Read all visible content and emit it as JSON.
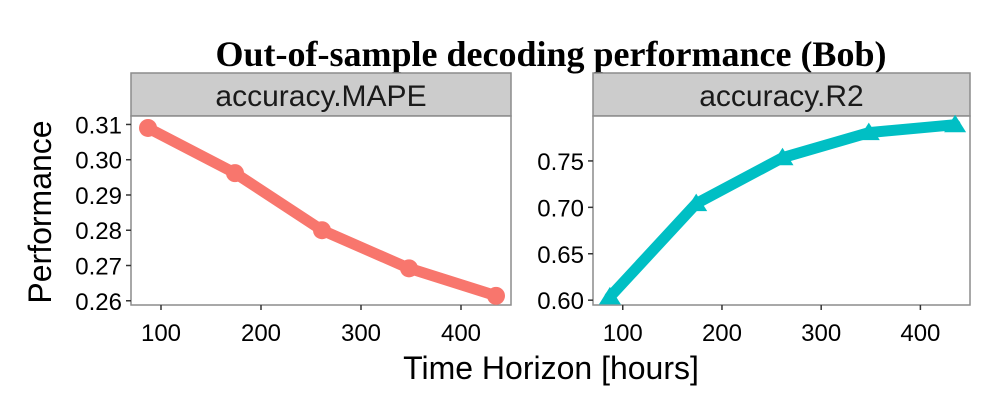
{
  "figure": {
    "title": "Out-of-sample decoding performance (Bob)",
    "xlabel": "Time Horizon [hours]",
    "ylabel": "Performance"
  },
  "chart_data": [
    {
      "type": "line",
      "panel": "accuracy.MAPE",
      "marker": "circle",
      "color": "#F8766D",
      "x": [
        87,
        174,
        261,
        348,
        435
      ],
      "values": [
        0.309,
        0.2962,
        0.28,
        0.2692,
        0.2614
      ],
      "xlim": [
        70,
        450
      ],
      "ylim": [
        0.2588,
        0.3124
      ],
      "xticks": [
        100,
        200,
        300,
        400
      ],
      "xtick_labels": [
        "100",
        "200",
        "300",
        "400"
      ],
      "yticks": [
        0.26,
        0.27,
        0.28,
        0.29,
        0.3,
        0.31
      ],
      "ytick_labels": [
        "0.26",
        "0.27",
        "0.28",
        "0.29",
        "0.30",
        "0.31"
      ],
      "grid": false
    },
    {
      "type": "line",
      "panel": "accuracy.R2",
      "marker": "triangle",
      "color": "#00BFC4",
      "x": [
        87,
        174,
        261,
        348,
        435
      ],
      "values": [
        0.6035,
        0.704,
        0.7535,
        0.7805,
        0.789
      ],
      "xlim": [
        70,
        450
      ],
      "ylim": [
        0.5948,
        0.7984
      ],
      "xticks": [
        100,
        200,
        300,
        400
      ],
      "xtick_labels": [
        "100",
        "200",
        "300",
        "400"
      ],
      "yticks": [
        0.6,
        0.65,
        0.7,
        0.75
      ],
      "ytick_labels": [
        "0.60",
        "0.65",
        "0.70",
        "0.75"
      ],
      "grid": false
    }
  ]
}
